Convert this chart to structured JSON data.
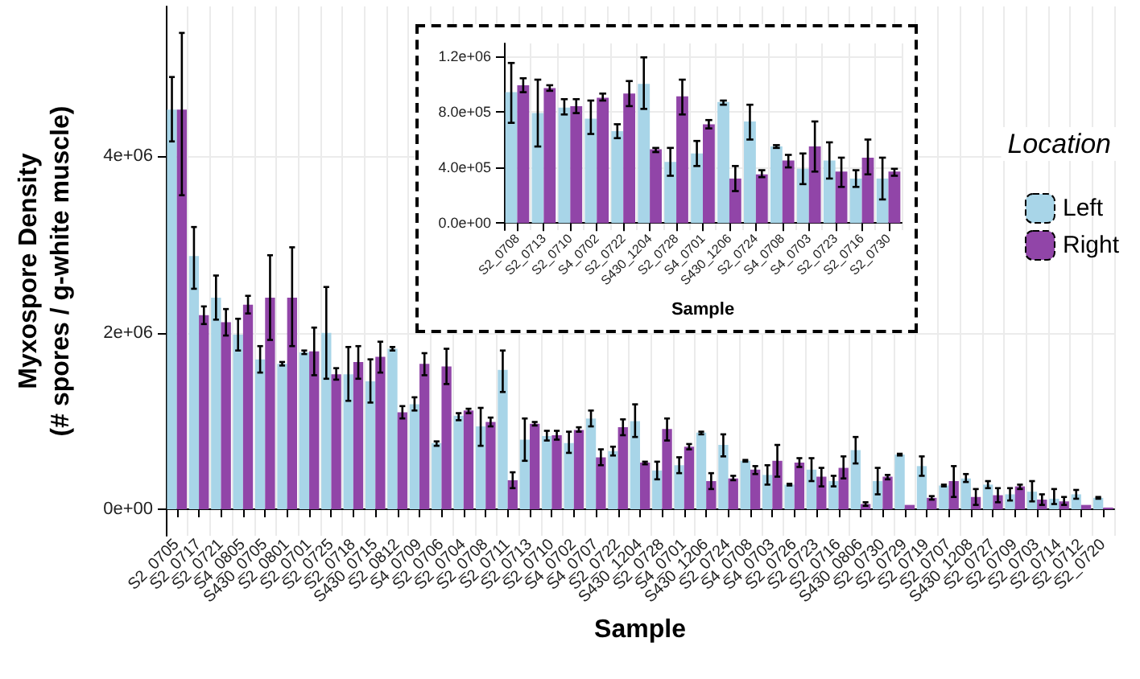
{
  "chart_data": [
    {
      "type": "bar",
      "xlabel": "Sample",
      "ylabel": "Myxospore Density\n(# spores / g-white muscle)",
      "legend_title": "Location",
      "legend": "right",
      "grid": true,
      "categories": [
        "S2_0705",
        "S2_0717",
        "S2_0721",
        "S4_0805",
        "S430_0705",
        "S2_0801",
        "S2_0701",
        "S2_0725",
        "S2_0718",
        "S430_0715",
        "S2_0812",
        "S4_0709",
        "S2_0706",
        "S2_0704",
        "S2_0708",
        "S2_0711",
        "S2_0713",
        "S2_0710",
        "S4_0702",
        "S4_0707",
        "S2_0722",
        "S430_1204",
        "S2_0728",
        "S4_0701",
        "S430_1206",
        "S2_0724",
        "S4_0708",
        "S4_0703",
        "S2_0726",
        "S2_0723",
        "S2_0716",
        "S430_0806",
        "S2_0730",
        "S2_0729",
        "S2_0719",
        "S2_0707",
        "S430_1208",
        "S2_0727",
        "S2_0709",
        "S2_0703",
        "S2_0714",
        "S2_0712",
        "S2_0720"
      ],
      "ylim": [
        -300000,
        5700000
      ],
      "yticks": [
        {
          "value": 0,
          "label": "0e+00"
        },
        {
          "value": 2000000,
          "label": "2e+06"
        },
        {
          "value": 4000000,
          "label": "4e+06"
        }
      ],
      "series": [
        {
          "name": "Left",
          "color": "#a8d5e8",
          "values": [
            4530000,
            2870000,
            2400000,
            1980000,
            1700000,
            1650000,
            1780000,
            2000000,
            1530000,
            1450000,
            1820000,
            1190000,
            750000,
            1060000,
            940000,
            1580000,
            790000,
            830000,
            750000,
            1030000,
            660000,
            1000000,
            440000,
            500000,
            870000,
            730000,
            550000,
            390000,
            280000,
            450000,
            320000,
            670000,
            320000,
            620000,
            490000,
            270000,
            350000,
            280000,
            170000,
            200000,
            120000,
            170000,
            130000
          ],
          "errors": [
            [
              4170000,
              4900000
            ],
            [
              2500000,
              3200000
            ],
            [
              2150000,
              2650000
            ],
            [
              1800000,
              2160000
            ],
            [
              1550000,
              1850000
            ],
            [
              1630000,
              1670000
            ],
            [
              1760000,
              1800000
            ],
            [
              1480000,
              2520000
            ],
            [
              1230000,
              1840000
            ],
            [
              1210000,
              1700000
            ],
            [
              1800000,
              1840000
            ],
            [
              1120000,
              1270000
            ],
            [
              720000,
              770000
            ],
            [
              1010000,
              1090000
            ],
            [
              720000,
              1150000
            ],
            [
              1330000,
              1800000
            ],
            [
              550000,
              1030000
            ],
            [
              780000,
              890000
            ],
            [
              640000,
              880000
            ],
            [
              940000,
              1120000
            ],
            [
              610000,
              710000
            ],
            [
              820000,
              1190000
            ],
            [
              340000,
              540000
            ],
            [
              410000,
              590000
            ],
            [
              850000,
              880000
            ],
            [
              600000,
              850000
            ],
            [
              540000,
              560000
            ],
            [
              280000,
              500000
            ],
            [
              270000,
              290000
            ],
            [
              320000,
              580000
            ],
            [
              260000,
              380000
            ],
            [
              520000,
              820000
            ],
            [
              170000,
              470000
            ],
            [
              610000,
              630000
            ],
            [
              380000,
              600000
            ],
            [
              260000,
              280000
            ],
            [
              310000,
              400000
            ],
            [
              240000,
              320000
            ],
            [
              100000,
              240000
            ],
            [
              90000,
              320000
            ],
            [
              60000,
              230000
            ],
            [
              120000,
              220000
            ],
            [
              120000,
              140000
            ]
          ]
        },
        {
          "name": "Right",
          "color": "#9145a8",
          "values": [
            4530000,
            2200000,
            2120000,
            2320000,
            2400000,
            2400000,
            1790000,
            1530000,
            1670000,
            1730000,
            1100000,
            1650000,
            1620000,
            1120000,
            990000,
            330000,
            970000,
            840000,
            900000,
            590000,
            930000,
            530000,
            910000,
            710000,
            320000,
            350000,
            450000,
            550000,
            530000,
            370000,
            470000,
            60000,
            370000,
            50000,
            130000,
            320000,
            140000,
            160000,
            260000,
            110000,
            90000,
            50000,
            20000
          ],
          "errors": [
            [
              3560000,
              5400000
            ],
            [
              2100000,
              2300000
            ],
            [
              1970000,
              2270000
            ],
            [
              2220000,
              2420000
            ],
            [
              1920000,
              2880000
            ],
            [
              1850000,
              2970000
            ],
            [
              1520000,
              2060000
            ],
            [
              1470000,
              1600000
            ],
            [
              1480000,
              1850000
            ],
            [
              1550000,
              1900000
            ],
            [
              1030000,
              1170000
            ],
            [
              1520000,
              1770000
            ],
            [
              1420000,
              1820000
            ],
            [
              1090000,
              1140000
            ],
            [
              940000,
              1040000
            ],
            [
              240000,
              420000
            ],
            [
              950000,
              990000
            ],
            [
              790000,
              890000
            ],
            [
              880000,
              930000
            ],
            [
              500000,
              680000
            ],
            [
              840000,
              1020000
            ],
            [
              510000,
              540000
            ],
            [
              780000,
              1030000
            ],
            [
              680000,
              740000
            ],
            [
              230000,
              410000
            ],
            [
              330000,
              380000
            ],
            [
              400000,
              490000
            ],
            [
              370000,
              730000
            ],
            [
              480000,
              580000
            ],
            [
              260000,
              470000
            ],
            [
              350000,
              600000
            ],
            [
              40000,
              80000
            ],
            [
              340000,
              390000
            ],
            null,
            [
              110000,
              150000
            ],
            [
              140000,
              490000
            ],
            [
              50000,
              230000
            ],
            [
              80000,
              240000
            ],
            [
              230000,
              280000
            ],
            [
              50000,
              170000
            ],
            [
              50000,
              140000
            ],
            null,
            null
          ]
        }
      ]
    },
    {
      "type": "bar",
      "xlabel": "Sample",
      "grid": true,
      "categories": [
        "S2_0708",
        "S2_0713",
        "S2_0710",
        "S4_0702",
        "S2_0722",
        "S430_1204",
        "S2_0728",
        "S4_0701",
        "S430_1206",
        "S2_0724",
        "S4_0708",
        "S4_0703",
        "S2_0723",
        "S2_0716",
        "S2_0730"
      ],
      "ylim": [
        -50000,
        1290000
      ],
      "yticks": [
        {
          "value": 0,
          "label": "0.0e+00"
        },
        {
          "value": 400000,
          "label": "4.0e+05"
        },
        {
          "value": 800000,
          "label": "8.0e+05"
        },
        {
          "value": 1200000,
          "label": "1.2e+06"
        }
      ],
      "series": [
        {
          "color": "#a8d5e8",
          "values": [
            940000,
            790000,
            830000,
            750000,
            660000,
            1000000,
            440000,
            500000,
            870000,
            730000,
            550000,
            390000,
            450000,
            320000,
            320000
          ],
          "errors": [
            [
              720000,
              1150000
            ],
            [
              550000,
              1030000
            ],
            [
              780000,
              890000
            ],
            [
              640000,
              880000
            ],
            [
              610000,
              710000
            ],
            [
              820000,
              1190000
            ],
            [
              340000,
              540000
            ],
            [
              410000,
              590000
            ],
            [
              850000,
              880000
            ],
            [
              600000,
              850000
            ],
            [
              540000,
              560000
            ],
            [
              280000,
              500000
            ],
            [
              320000,
              580000
            ],
            [
              260000,
              380000
            ],
            [
              170000,
              470000
            ]
          ]
        },
        {
          "color": "#9145a8",
          "values": [
            990000,
            970000,
            840000,
            900000,
            930000,
            530000,
            910000,
            710000,
            320000,
            350000,
            450000,
            550000,
            370000,
            470000,
            370000
          ],
          "errors": [
            [
              940000,
              1040000
            ],
            [
              950000,
              990000
            ],
            [
              790000,
              890000
            ],
            [
              880000,
              930000
            ],
            [
              840000,
              1020000
            ],
            [
              510000,
              540000
            ],
            [
              780000,
              1030000
            ],
            [
              680000,
              740000
            ],
            [
              230000,
              410000
            ],
            [
              330000,
              380000
            ],
            [
              400000,
              490000
            ],
            [
              370000,
              730000
            ],
            [
              260000,
              470000
            ],
            [
              350000,
              600000
            ],
            [
              340000,
              390000
            ]
          ]
        }
      ]
    }
  ]
}
